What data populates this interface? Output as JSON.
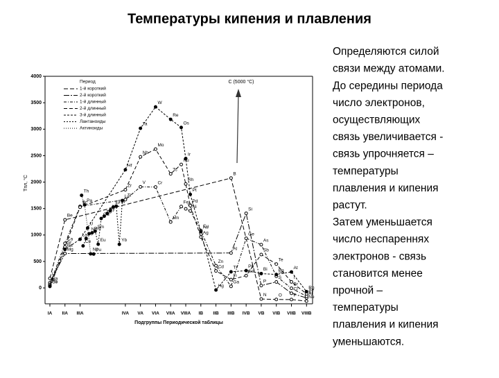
{
  "title": "Температуры кипения и плавления",
  "text_lines": [
    "Определяются силой",
    "связи между атомами.",
    "До середины периода",
    "число электронов,",
    "осуществляющих",
    "связь увеличивается -",
    "связь упрочняется –",
    "температуры",
    "плавления и кипения",
    "растут.",
    "Затем уменьшается",
    "число неспареннях",
    "электронов - связь",
    "становится менее",
    "прочной –",
    "температуры",
    "плавления и кипения",
    "уменьшаются."
  ],
  "chart_data": {
    "type": "line",
    "y_label": "Tпл, °C",
    "x_label": "Подгруппы Периодической таблицы",
    "legend_title": "Период",
    "annotation": "C (5000 °C)",
    "ylim": [
      -300,
      4000
    ],
    "yticks": [
      0,
      500,
      1000,
      1500,
      2000,
      2500,
      3000,
      3500,
      4000
    ],
    "xlim": [
      0.68,
      18.4
    ],
    "xticks": [
      {
        "value": 1,
        "label": "IA"
      },
      {
        "value": 2,
        "label": "IIA"
      },
      {
        "value": 3,
        "label": "IIIA"
      },
      {
        "value": 6,
        "label": "IVA"
      },
      {
        "value": 7,
        "label": "VA"
      },
      {
        "value": 8,
        "label": "VIA"
      },
      {
        "value": 9,
        "label": "VIIA"
      },
      {
        "value": 10,
        "label": "VIIIA"
      },
      {
        "value": 11,
        "label": "IB"
      },
      {
        "value": 12,
        "label": "IIB"
      },
      {
        "value": 13,
        "label": "IIIB"
      },
      {
        "value": 14,
        "label": "IVB"
      },
      {
        "value": 15,
        "label": "VB"
      },
      {
        "value": 16,
        "label": "VIB"
      },
      {
        "value": 17,
        "label": "VIIB"
      },
      {
        "value": 18,
        "label": "VIIIB"
      }
    ],
    "series": [
      {
        "name": "1-й короткий",
        "color": "#000000",
        "dash": "6 3",
        "marker": "open",
        "labels": [
          "Li",
          "Be",
          "B",
          "N",
          "O",
          "F",
          "Ne"
        ],
        "x": [
          1,
          2,
          13,
          15,
          16,
          17,
          18
        ],
        "values": [
          180,
          1287,
          2076,
          -210,
          -218,
          -220,
          -249
        ]
      },
      {
        "name": "2-й короткий",
        "color": "#000000",
        "dash": "8 2 2 2",
        "marker": "open",
        "labels": [
          "Na",
          "Mg",
          "Al",
          "Si",
          "P",
          "S",
          "Cl",
          "Ar"
        ],
        "x": [
          1,
          2,
          13,
          14,
          15,
          16,
          17,
          18
        ],
        "values": [
          98,
          650,
          660,
          1410,
          44,
          113,
          -101,
          -189
        ]
      },
      {
        "name": "1-й длинный",
        "color": "#000000",
        "dash": "4 2 1 2",
        "marker": "open",
        "labels": [
          "K",
          "Ca",
          "Sc",
          "Ti",
          "V",
          "Cr",
          "Mn",
          "Fe",
          "Co",
          "Ni",
          "Cu",
          "Zn",
          "Ga",
          "Ge",
          "As",
          "Se",
          "Br",
          "Kr"
        ],
        "x": [
          1,
          2,
          3,
          6,
          7,
          8,
          9,
          9.7,
          10,
          10.3,
          11,
          12,
          13,
          14,
          15,
          16,
          17,
          18
        ],
        "values": [
          64,
          842,
          1541,
          1668,
          1910,
          1907,
          1246,
          1538,
          1495,
          1455,
          1085,
          420,
          30,
          938,
          817,
          221,
          -7,
          -157
        ]
      },
      {
        "name": "2-й длинный",
        "color": "#000000",
        "dash": "5 3",
        "marker": "open",
        "labels": [
          "Rb",
          "Sr",
          "Y",
          "Zr",
          "Nb",
          "Mo",
          "Tc",
          "Ru",
          "Rh",
          "Pd",
          "Ag",
          "Cd",
          "In",
          "Sn",
          "Sb",
          "Te",
          "I",
          "Xe"
        ],
        "x": [
          1,
          2,
          3,
          6,
          7,
          8,
          9,
          9.7,
          10,
          10.3,
          11,
          12,
          13,
          14,
          15,
          16,
          17,
          18
        ],
        "values": [
          39,
          777,
          1526,
          1855,
          2477,
          2623,
          2157,
          2334,
          1964,
          1555,
          962,
          321,
          157,
          232,
          631,
          450,
          114,
          -112
        ]
      },
      {
        "name": "3-й длинный",
        "color": "#000000",
        "dash": "3 2",
        "marker": "filled",
        "labels": [
          "Cs",
          "Ba",
          "La",
          "Hf",
          "Ta",
          "W",
          "Re",
          "Os",
          "Ir",
          "Pt",
          "Au",
          "Hg",
          "Tl",
          "Pb",
          "Bi",
          "Po",
          "At",
          "Rn"
        ],
        "x": [
          1,
          2,
          3,
          6,
          7,
          8,
          9,
          9.7,
          10,
          10.3,
          11,
          12,
          13,
          14,
          15,
          16,
          17,
          18
        ],
        "values": [
          28,
          727,
          920,
          2233,
          3017,
          3422,
          3186,
          3033,
          2446,
          1768,
          1064,
          -39,
          304,
          327,
          271,
          254,
          302,
          -71
        ]
      },
      {
        "name": "Лантаноиды",
        "color": "#000000",
        "dash": "2 2",
        "marker": "filled",
        "labels": [
          "Ce",
          "Pr",
          "Nd",
          "Pm",
          "Sm",
          "Eu",
          "Gd",
          "Tb",
          "Dy",
          "Ho",
          "Er",
          "Tm",
          "Yb",
          "Lu"
        ],
        "x": [
          3.2,
          3.4,
          3.6,
          3.8,
          4.0,
          4.2,
          4.4,
          4.6,
          4.8,
          5.0,
          5.2,
          5.4,
          5.6,
          5.8
        ],
        "values": [
          795,
          935,
          1024,
          1042,
          1072,
          826,
          1312,
          1356,
          1407,
          1461,
          1529,
          1545,
          824,
          1652
        ]
      },
      {
        "name": "Актиноиды",
        "color": "#000000",
        "dash": "1 2",
        "marker": "filled",
        "labels": [
          "Th",
          "Pa",
          "U",
          "Np",
          "Pu"
        ],
        "x": [
          3.1,
          3.3,
          3.5,
          3.7,
          3.9
        ],
        "values": [
          1750,
          1568,
          1132,
          644,
          640
        ]
      }
    ]
  }
}
